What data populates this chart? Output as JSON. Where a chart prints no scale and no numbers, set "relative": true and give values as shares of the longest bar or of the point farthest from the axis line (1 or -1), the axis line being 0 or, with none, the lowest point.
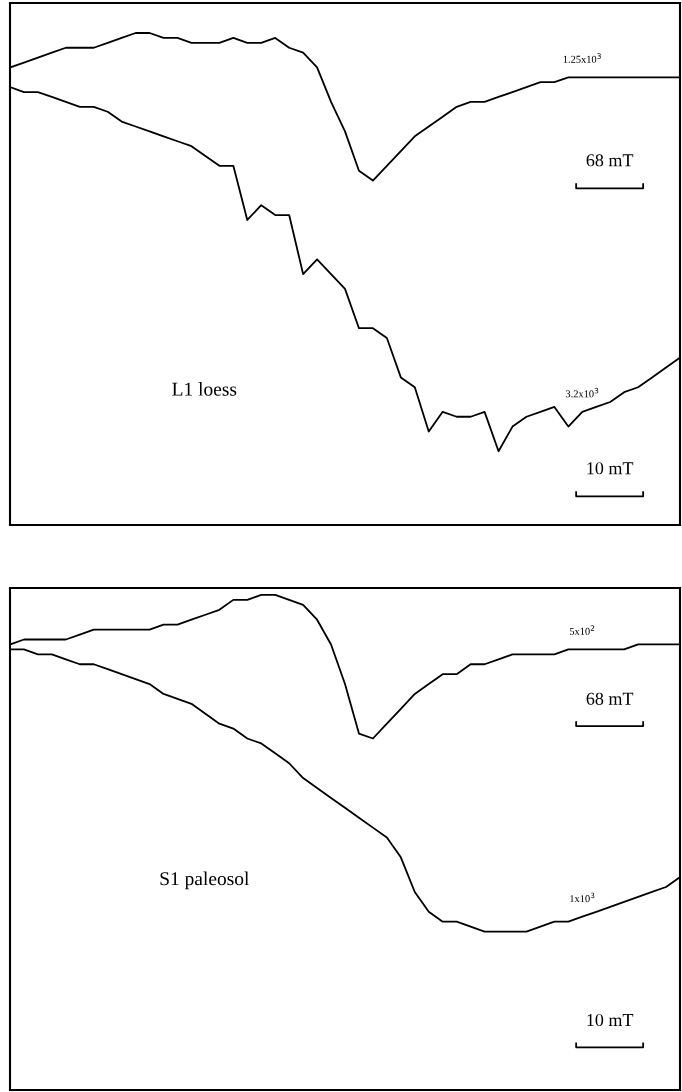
{
  "chart_data": [
    {
      "type": "line",
      "relative": true,
      "categories": [
        null,
        null,
        null,
        null,
        null,
        null,
        null,
        null,
        null,
        null,
        null,
        null,
        null,
        null,
        null,
        null,
        null,
        null,
        null,
        null,
        null,
        null,
        null,
        null,
        null,
        null,
        null,
        null,
        null,
        null,
        null,
        null,
        null,
        null,
        null,
        null,
        null,
        null,
        null,
        null,
        null,
        null,
        null,
        null,
        null,
        null,
        null,
        null,
        null
      ],
      "series": [
        {
          "name": "1.25x10$^{3}$",
          "color": "#000000",
          "values": [
            0.93,
            0.94,
            0.95,
            0.96,
            0.97,
            0.97,
            0.97,
            0.98,
            0.99,
            1.0,
            1.0,
            0.99,
            0.99,
            0.98,
            0.98,
            0.98,
            0.99,
            0.98,
            0.98,
            0.99,
            0.97,
            0.96,
            0.93,
            0.86,
            0.8,
            0.72,
            0.7,
            0.73,
            0.76,
            0.79,
            0.81,
            0.83,
            0.85,
            0.86,
            0.86,
            0.87,
            0.88,
            0.89,
            0.9,
            0.9,
            0.91,
            0.91,
            0.91,
            0.91,
            0.91,
            0.91,
            0.91,
            0.91,
            0.91
          ]
        },
        {
          "name": "3.2x10$^{3}$",
          "color": "#000000",
          "values": [
            0.89,
            0.88,
            0.88,
            0.87,
            0.86,
            0.85,
            0.85,
            0.84,
            0.82,
            0.81,
            0.8,
            0.79,
            0.78,
            0.77,
            0.75,
            0.73,
            0.73,
            0.62,
            0.65,
            0.63,
            0.63,
            0.51,
            0.54,
            0.51,
            0.48,
            0.4,
            0.4,
            0.38,
            0.3,
            0.28,
            0.19,
            0.23,
            0.22,
            0.22,
            0.23,
            0.15,
            0.2,
            0.22,
            0.23,
            0.24,
            0.2,
            0.23,
            0.24,
            0.25,
            0.27,
            0.28,
            0.3,
            0.32,
            0.34
          ]
        }
      ],
      "annotations": [
        "68 mT",
        "10 mT",
        "L1 loess"
      ],
      "legend": false
    },
    {
      "type": "line",
      "relative": true,
      "categories": [
        null,
        null,
        null,
        null,
        null,
        null,
        null,
        null,
        null,
        null,
        null,
        null,
        null,
        null,
        null,
        null,
        null,
        null,
        null,
        null,
        null,
        null,
        null,
        null,
        null,
        null,
        null,
        null,
        null,
        null,
        null,
        null,
        null,
        null,
        null,
        null,
        null,
        null,
        null,
        null,
        null,
        null,
        null,
        null,
        null,
        null,
        null,
        null,
        null
      ],
      "series": [
        {
          "name": "5x10$^{2}$",
          "color": "#000000",
          "values": [
            0.9,
            0.91,
            0.91,
            0.91,
            0.91,
            0.92,
            0.93,
            0.93,
            0.93,
            0.93,
            0.93,
            0.94,
            0.94,
            0.95,
            0.96,
            0.97,
            0.99,
            0.99,
            1.0,
            1.0,
            0.99,
            0.98,
            0.95,
            0.9,
            0.82,
            0.72,
            0.71,
            0.74,
            0.77,
            0.8,
            0.82,
            0.84,
            0.84,
            0.86,
            0.86,
            0.87,
            0.88,
            0.88,
            0.88,
            0.88,
            0.89,
            0.89,
            0.89,
            0.89,
            0.89,
            0.9,
            0.9,
            0.9,
            0.9
          ]
        },
        {
          "name": "1x10$^{3}$",
          "color": "#000000",
          "values": [
            0.89,
            0.89,
            0.88,
            0.88,
            0.87,
            0.86,
            0.86,
            0.85,
            0.84,
            0.83,
            0.82,
            0.8,
            0.79,
            0.78,
            0.76,
            0.74,
            0.73,
            0.71,
            0.7,
            0.68,
            0.66,
            0.63,
            0.61,
            0.59,
            0.57,
            0.55,
            0.53,
            0.51,
            0.47,
            0.4,
            0.36,
            0.34,
            0.34,
            0.33,
            0.32,
            0.32,
            0.32,
            0.32,
            0.33,
            0.34,
            0.34,
            0.35,
            0.36,
            0.37,
            0.38,
            0.39,
            0.4,
            0.41,
            0.43
          ]
        }
      ],
      "annotations": [
        "68 mT",
        "10 mT",
        "S1 paleosol"
      ],
      "legend": false
    }
  ]
}
